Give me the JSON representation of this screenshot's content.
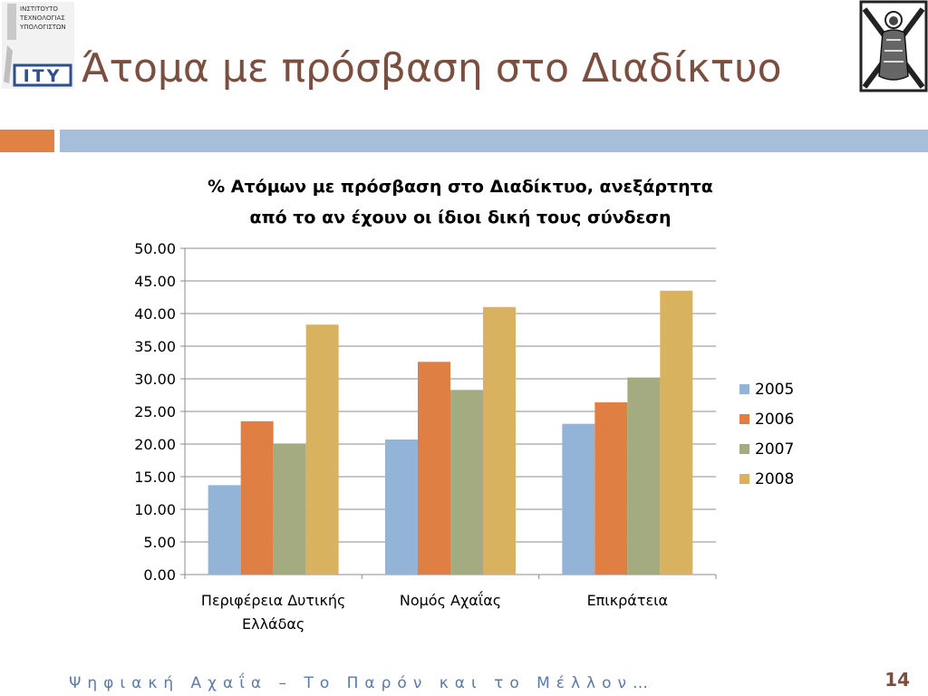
{
  "slide": {
    "title": "Άτομα με πρόσβαση στο Διαδίκτυο",
    "footer": "Ψηφιακή Αχαΐα – Το Παρόν και το Μέλλον…",
    "page_number": "14"
  },
  "logo_left": {
    "line1": "ΙΝΣΤΙΤΟΥΤΟ",
    "line2": "ΤΕΧΝΟΛΟΓΙΑΣ",
    "line3": "ΥΠΟΛΟΓΙΣΤΩΝ",
    "mark": "ΙΤΥ"
  },
  "colors": {
    "title": "#7b4f3f",
    "accent_orange": "#df8244",
    "accent_blue": "#a7bedb",
    "footer": "#5a7aa8"
  },
  "chart_data": {
    "type": "bar",
    "title_lines": [
      "% Ατόμων με πρόσβαση στο Διαδίκτυο, ανεξάρτητα",
      "από το αν έχουν οι ίδιοι δική τους σύνδεση"
    ],
    "categories": [
      [
        "Περιφέρεια Δυτικής",
        "Ελλάδας"
      ],
      [
        "Νομός Αχαΐας"
      ],
      [
        "Επικράτεια"
      ]
    ],
    "series": [
      {
        "name": "2005",
        "color": "#93b3d7",
        "values": [
          13.7,
          20.7,
          23.1
        ]
      },
      {
        "name": "2006",
        "color": "#e07f44",
        "values": [
          23.5,
          32.6,
          26.4
        ]
      },
      {
        "name": "2007",
        "color": "#a5ab80",
        "values": [
          20.0,
          28.3,
          30.2
        ]
      },
      {
        "name": "2008",
        "color": "#d8b25e",
        "values": [
          38.3,
          41.0,
          43.5
        ]
      }
    ],
    "ylim": [
      0,
      50
    ],
    "yticks": [
      "0.00",
      "5.00",
      "10.00",
      "15.00",
      "20.00",
      "25.00",
      "30.00",
      "35.00",
      "40.00",
      "45.00",
      "50.00"
    ],
    "grid": true,
    "legend_position": "right"
  }
}
